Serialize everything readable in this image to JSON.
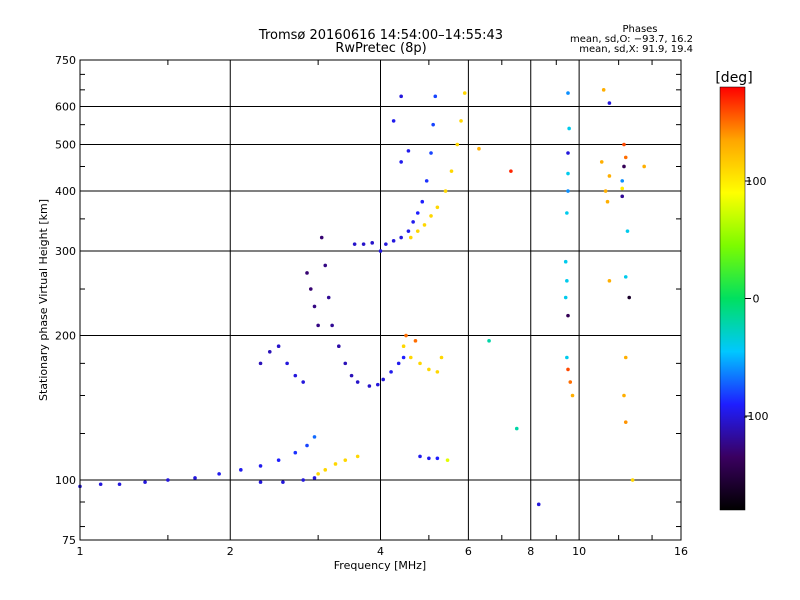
{
  "chart_data": {
    "type": "scatter",
    "title": "Tromsø 20160616 14:54:00–14:55:43",
    "subtitle": "RwPretec (8p)",
    "xlabel": "Frequency [MHz]",
    "ylabel": "Stationary phase Virtual Height [km]",
    "x_scale": "log",
    "y_scale": "log",
    "xlim": [
      1,
      16
    ],
    "ylim": [
      75,
      750
    ],
    "x_ticks": [
      1,
      2,
      4,
      6,
      8,
      10,
      16
    ],
    "y_ticks": [
      75,
      100,
      200,
      300,
      400,
      500,
      600,
      750
    ],
    "grid": true,
    "stats_title": "Phases",
    "stats_lines": [
      "mean, sd,O: −93.7, 16.2",
      "mean, sd,X:  91.9, 19.4"
    ],
    "colorbar": {
      "label": "[deg]",
      "range": [
        -180,
        180
      ],
      "ticks": [
        100,
        0,
        -100
      ],
      "colors": [
        "#000000",
        "#3a0060",
        "#1e1eff",
        "#00c8ff",
        "#00e060",
        "#7cfc00",
        "#ffff00",
        "#ffa500",
        "#ff0000"
      ]
    },
    "series": [
      {
        "points": [
          [
            1.0,
            97,
            -100
          ],
          [
            1.1,
            98,
            -100
          ],
          [
            1.2,
            98,
            -100
          ],
          [
            1.35,
            99,
            -100
          ],
          [
            1.5,
            100,
            -100
          ],
          [
            1.7,
            101,
            -100
          ],
          [
            1.9,
            103,
            -95
          ],
          [
            2.1,
            105,
            -95
          ],
          [
            2.3,
            107,
            -95
          ],
          [
            2.5,
            110,
            -90
          ],
          [
            2.7,
            114,
            -85
          ],
          [
            2.85,
            118,
            -80
          ],
          [
            2.95,
            123,
            -70
          ],
          [
            2.3,
            99,
            -100
          ],
          [
            2.55,
            99,
            -100
          ],
          [
            2.8,
            100,
            -100
          ],
          [
            2.95,
            101,
            -100
          ],
          [
            3.0,
            103,
            110
          ],
          [
            3.1,
            105,
            110
          ],
          [
            3.25,
            108,
            110
          ],
          [
            3.4,
            110,
            110
          ],
          [
            3.6,
            112,
            110
          ],
          [
            2.3,
            175,
            -110
          ],
          [
            2.4,
            185,
            -110
          ],
          [
            2.5,
            190,
            -105
          ],
          [
            2.6,
            175,
            -100
          ],
          [
            2.7,
            165,
            -100
          ],
          [
            2.8,
            160,
            -100
          ],
          [
            2.85,
            270,
            -130
          ],
          [
            2.9,
            250,
            -130
          ],
          [
            2.95,
            230,
            -125
          ],
          [
            3.0,
            210,
            -125
          ],
          [
            3.05,
            320,
            -130
          ],
          [
            3.1,
            280,
            -125
          ],
          [
            3.15,
            240,
            -120
          ],
          [
            3.2,
            210,
            -120
          ],
          [
            3.3,
            190,
            -115
          ],
          [
            3.4,
            175,
            -110
          ],
          [
            3.5,
            165,
            -110
          ],
          [
            3.6,
            160,
            -105
          ],
          [
            3.8,
            157,
            -105
          ],
          [
            3.95,
            158,
            -100
          ],
          [
            4.05,
            162,
            -100
          ],
          [
            4.2,
            168,
            -95
          ],
          [
            4.35,
            175,
            -95
          ],
          [
            4.45,
            180,
            -90
          ],
          [
            3.55,
            310,
            -105
          ],
          [
            3.7,
            310,
            -105
          ],
          [
            3.85,
            312,
            -105
          ],
          [
            4.0,
            300,
            -100
          ],
          [
            4.1,
            310,
            -100
          ],
          [
            4.25,
            315,
            -100
          ],
          [
            4.4,
            320,
            -100
          ],
          [
            4.55,
            330,
            -95
          ],
          [
            4.65,
            345,
            -95
          ],
          [
            4.75,
            360,
            -90
          ],
          [
            4.85,
            380,
            -90
          ],
          [
            4.95,
            420,
            -85
          ],
          [
            5.05,
            480,
            -80
          ],
          [
            5.1,
            550,
            -80
          ],
          [
            5.15,
            630,
            -80
          ],
          [
            4.4,
            460,
            -95
          ],
          [
            4.55,
            485,
            -95
          ],
          [
            4.25,
            560,
            -95
          ],
          [
            4.4,
            630,
            -100
          ],
          [
            4.6,
            320,
            110
          ],
          [
            4.75,
            330,
            110
          ],
          [
            4.9,
            340,
            110
          ],
          [
            5.05,
            355,
            110
          ],
          [
            5.2,
            370,
            110
          ],
          [
            5.4,
            400,
            110
          ],
          [
            5.55,
            440,
            110
          ],
          [
            5.7,
            500,
            110
          ],
          [
            5.8,
            560,
            110
          ],
          [
            5.9,
            640,
            110
          ],
          [
            4.45,
            190,
            110
          ],
          [
            4.6,
            180,
            110
          ],
          [
            4.8,
            175,
            110
          ],
          [
            5.0,
            170,
            110
          ],
          [
            5.2,
            168,
            110
          ],
          [
            5.3,
            180,
            110
          ],
          [
            4.5,
            200,
            150
          ],
          [
            4.7,
            195,
            150
          ],
          [
            4.8,
            112,
            -95
          ],
          [
            5.0,
            111,
            -95
          ],
          [
            5.2,
            111,
            -90
          ],
          [
            5.45,
            110,
            80
          ],
          [
            6.3,
            490,
            130
          ],
          [
            7.3,
            440,
            170
          ],
          [
            6.6,
            195,
            -20
          ],
          [
            7.5,
            128,
            -20
          ],
          [
            8.3,
            89,
            -100
          ],
          [
            9.5,
            640,
            -60
          ],
          [
            9.55,
            540,
            -40
          ],
          [
            9.5,
            480,
            -100
          ],
          [
            9.5,
            435,
            -40
          ],
          [
            9.5,
            400,
            -60
          ],
          [
            9.45,
            360,
            -40
          ],
          [
            9.4,
            285,
            -40
          ],
          [
            9.45,
            260,
            -40
          ],
          [
            9.4,
            240,
            -40
          ],
          [
            9.5,
            220,
            -140
          ],
          [
            9.45,
            180,
            -40
          ],
          [
            9.5,
            170,
            160
          ],
          [
            9.6,
            160,
            150
          ],
          [
            9.7,
            150,
            130
          ],
          [
            11.2,
            650,
            130
          ],
          [
            11.5,
            610,
            -100
          ],
          [
            12.3,
            500,
            160
          ],
          [
            12.4,
            470,
            150
          ],
          [
            12.3,
            450,
            -140
          ],
          [
            11.1,
            460,
            130
          ],
          [
            11.5,
            430,
            130
          ],
          [
            12.2,
            420,
            -60
          ],
          [
            12.2,
            405,
            100
          ],
          [
            12.2,
            390,
            -120
          ],
          [
            11.3,
            400,
            130
          ],
          [
            11.4,
            380,
            130
          ],
          [
            12.5,
            330,
            -40
          ],
          [
            12.4,
            265,
            -40
          ],
          [
            11.5,
            260,
            130
          ],
          [
            12.6,
            240,
            -160
          ],
          [
            12.4,
            180,
            130
          ],
          [
            12.3,
            150,
            130
          ],
          [
            12.4,
            132,
            140
          ],
          [
            12.8,
            100,
            110
          ],
          [
            13.5,
            450,
            130
          ]
        ]
      }
    ]
  }
}
